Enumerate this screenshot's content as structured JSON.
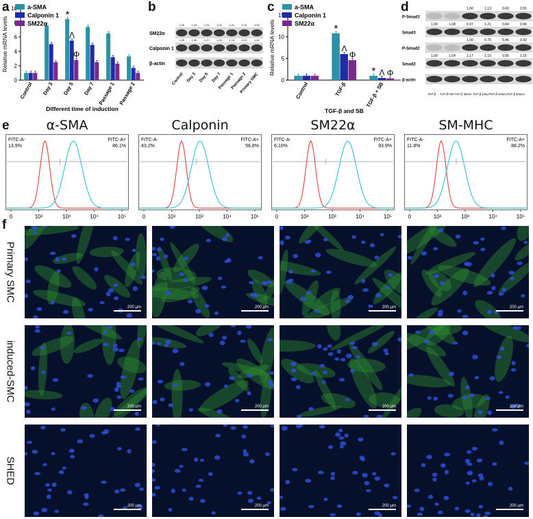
{
  "panels": {
    "a": {
      "letter": "a"
    },
    "b": {
      "letter": "b"
    },
    "c": {
      "letter": "c"
    },
    "d": {
      "letter": "d"
    },
    "e": {
      "letter": "e"
    },
    "f": {
      "letter": "f"
    }
  },
  "colors": {
    "teal": "#2a93a8",
    "blue": "#1f2ca8",
    "purple": "#7a2a8c",
    "red": "#e05050",
    "cyan": "#3cc8d8"
  },
  "chart_data": [
    {
      "type": "bar",
      "id": "a",
      "categories": [
        "Control",
        "Day 3",
        "Day 5",
        "Day 7",
        "Passage 1",
        "Passage 2"
      ],
      "series": [
        {
          "name": "a-SMA",
          "values": [
            1.0,
            7.6,
            8.5,
            7.4,
            6.5,
            3.3
          ]
        },
        {
          "name": "Calponin 1",
          "values": [
            1.0,
            5.0,
            5.5,
            4.9,
            3.2,
            1.7
          ]
        },
        {
          "name": "SM22α",
          "values": [
            1.0,
            2.5,
            2.8,
            2.5,
            2.3,
            1.0
          ]
        }
      ],
      "xlabel": "Different time of induction",
      "ylabel": "Relative mRNA levels",
      "ylim": [
        0,
        10
      ],
      "yticks": [
        "0",
        "2",
        "4",
        "6",
        "8",
        "10"
      ],
      "annotations": [
        {
          "text": "*",
          "category": "Day 5",
          "series": "a-SMA"
        },
        {
          "text": "Λ",
          "category": "Day 5",
          "series": "Calponin 1"
        },
        {
          "text": "Φ",
          "category": "Day 5",
          "series": "SM22α"
        }
      ],
      "legend": "top-left"
    },
    {
      "type": "bar",
      "id": "c",
      "categories": [
        "Control",
        "TGF-β",
        "TGF-β + SB"
      ],
      "series": [
        {
          "name": "a-SMA",
          "values": [
            1.0,
            10.8,
            1.0
          ]
        },
        {
          "name": "Calponin 1",
          "values": [
            1.0,
            6.0,
            0.5
          ]
        },
        {
          "name": "SM22α",
          "values": [
            1.0,
            4.6,
            0.4
          ]
        }
      ],
      "xlabel": "TGF-β and SB",
      "ylabel": "Relative mRNA levels",
      "ylim": [
        0,
        15
      ],
      "yticks": [
        "0",
        "5",
        "10",
        "15"
      ],
      "annotations": [
        {
          "text": "*",
          "category": "TGF-β",
          "series": "a-SMA"
        },
        {
          "text": "Λ",
          "category": "TGF-β",
          "series": "Calponin 1"
        },
        {
          "text": "Φ",
          "category": "TGF-β",
          "series": "SM22α"
        },
        {
          "text": "*",
          "category": "TGF-β + SB",
          "series": "a-SMA"
        },
        {
          "text": "Λ",
          "category": "TGF-β + SB",
          "series": "Calponin 1"
        },
        {
          "text": "Φ",
          "category": "TGF-β + SB",
          "series": "SM22α"
        }
      ],
      "legend": "top-left"
    }
  ],
  "blot_b": {
    "rows": [
      {
        "label": "SM22α",
        "values": [
          "1.00",
          "1.03",
          "1.01",
          "1.02",
          "1.21",
          "0.76",
          "0.90"
        ]
      },
      {
        "label": "Calponin 1",
        "values": [
          "1.00",
          "1.05",
          "1.07",
          "1.00",
          "1.13",
          "0.22",
          "1.42"
        ]
      },
      {
        "label": "β-actin",
        "values": []
      }
    ],
    "lanes": [
      "Control",
      "Day 3",
      "Day 5",
      "Day 7",
      "Passage 1",
      "Passage 2",
      "Primary SMC"
    ]
  },
  "blot_d": {
    "rows": [
      {
        "label": "P-Smad3",
        "values": [
          "",
          "",
          "1.00",
          "1.13",
          "0.60",
          "0.55"
        ]
      },
      {
        "label": "Smad3",
        "values": [
          "1.00",
          "1.08",
          "0.97",
          "1.21",
          "0.84",
          "0.96"
        ]
      },
      {
        "label": "P-Smad2",
        "values": [
          "",
          "",
          "1.00",
          "0.70",
          "0.46",
          "0.42"
        ]
      },
      {
        "label": "Smad2",
        "values": [
          "1.00",
          "1.04",
          "1.17",
          "1.10",
          "0.95",
          "1.15"
        ]
      },
      {
        "label": "β-actin",
        "values": []
      }
    ],
    "lanes": [
      "TGF-β",
      "TGF-β+SB",
      "TGF-β 30min",
      "TGF-β 1hour",
      "TGF-β 2hours",
      "TGF-β 4hours"
    ]
  },
  "flow": {
    "x_ticks": [
      "0",
      "10²",
      "10³",
      "10⁴",
      "10⁵"
    ],
    "panels": [
      {
        "title": "α-SMA",
        "neg_label": "FITC-A-",
        "neg_value": "13.9%",
        "pos_label": "FITC-A+",
        "pos_value": "86.1%",
        "red_peak": 0.32,
        "cyan_peak": 0.55
      },
      {
        "title": "Calponin",
        "neg_label": "FITC-A-",
        "neg_value": "43.2%",
        "pos_label": "FITC-A+",
        "pos_value": "56.8%",
        "red_peak": 0.35,
        "cyan_peak": 0.5
      },
      {
        "title": "SM22α",
        "neg_label": "FITC-A-",
        "neg_value": "6.10%",
        "pos_label": "FITC-A+",
        "pos_value": "93.9%",
        "red_peak": 0.32,
        "cyan_peak": 0.62
      },
      {
        "title": "SM-MHC",
        "neg_label": "FITC-A-",
        "neg_value": "11.8%",
        "pos_label": "FITC-A+",
        "pos_value": "88.2%",
        "red_peak": 0.3,
        "cyan_peak": 0.42
      }
    ]
  },
  "micro": {
    "rows": [
      "Primary SMC",
      "induced-SMC",
      "SHED"
    ],
    "scale_label": "200 μm"
  }
}
